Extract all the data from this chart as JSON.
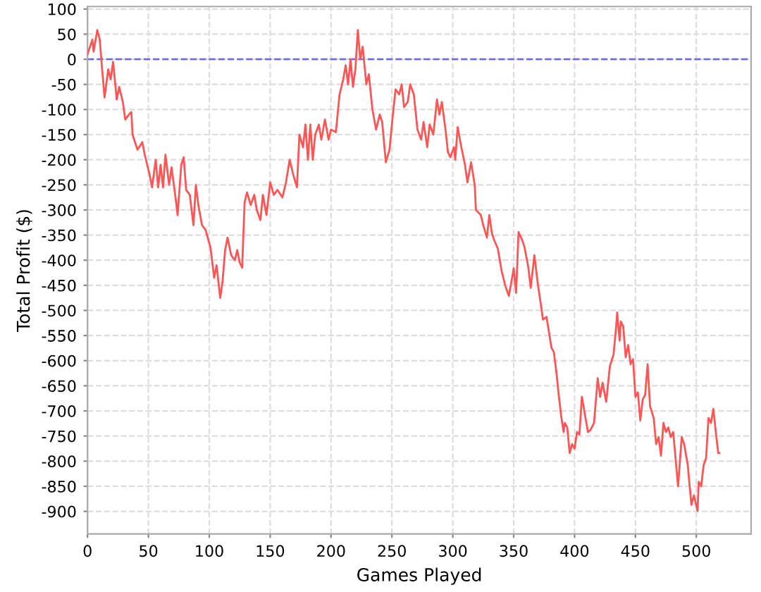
{
  "chart_data": {
    "type": "line",
    "xlabel": "Games Played",
    "ylabel": "Total Profit ($)",
    "xlim": [
      0,
      545
    ],
    "ylim": [
      -945,
      105
    ],
    "xticks": [
      0,
      50,
      100,
      150,
      200,
      250,
      300,
      350,
      400,
      450,
      500
    ],
    "yticks": [
      100,
      50,
      0,
      -50,
      -100,
      -150,
      -200,
      -250,
      -300,
      -350,
      -400,
      -450,
      -500,
      -550,
      -600,
      -650,
      -700,
      -750,
      -800,
      -850,
      -900
    ],
    "grid": true,
    "marker": "none",
    "line_style": "solid",
    "ref_lines": [
      {
        "axis": "y",
        "value": 0,
        "color": "#6666ff",
        "line_style": "dashed"
      }
    ],
    "series": [
      {
        "color": "#ff5555",
        "x": [
          0,
          4,
          5,
          8,
          10,
          12,
          14,
          17,
          19,
          21,
          24,
          26,
          29,
          31,
          34,
          36,
          37,
          41,
          45,
          47,
          51,
          53,
          56,
          58,
          60,
          62,
          64,
          67,
          69,
          72,
          74,
          77,
          79,
          81,
          84,
          87,
          89,
          91,
          94,
          97,
          101,
          104,
          106,
          109,
          111,
          113,
          115,
          118,
          121,
          123,
          125,
          127,
          129,
          131,
          134,
          137,
          139,
          142,
          144,
          147,
          150,
          153,
          156,
          160,
          163,
          166,
          169,
          172,
          174,
          177,
          179,
          181,
          183,
          185,
          187,
          190,
          192,
          195,
          198,
          200,
          204,
          207,
          210,
          212,
          214,
          216,
          218,
          220,
          222,
          224,
          226,
          229,
          231,
          234,
          237,
          240,
          242,
          245,
          248,
          251,
          253,
          256,
          258,
          260,
          263,
          265,
          268,
          271,
          274,
          276,
          279,
          281,
          284,
          287,
          289,
          291,
          294,
          296,
          298,
          301,
          302,
          304,
          307,
          310,
          312,
          315,
          318,
          319,
          323,
          325,
          328,
          330,
          332,
          334,
          337,
          340,
          343,
          346,
          348,
          350,
          352,
          354,
          357,
          359,
          362,
          364,
          367,
          370,
          373,
          374,
          377,
          381,
          383,
          385,
          387,
          389,
          391,
          392,
          394,
          396,
          398,
          400,
          402,
          404,
          406,
          409,
          411,
          413,
          416,
          419,
          421,
          423,
          426,
          429,
          432,
          434,
          435,
          437,
          438,
          440,
          442,
          444,
          446,
          448,
          450,
          452,
          454,
          456,
          458,
          460,
          462,
          465,
          467,
          469,
          471,
          473,
          475,
          477,
          479,
          481,
          485,
          488,
          490,
          493,
          494,
          496,
          498,
          499,
          501,
          502,
          504,
          506,
          508,
          510,
          512,
          514,
          516,
          518,
          519
        ],
        "values": [
          10,
          39,
          15,
          58,
          40,
          -20,
          -76,
          -20,
          -40,
          -5,
          -80,
          -55,
          -85,
          -120,
          -110,
          -105,
          -150,
          -180,
          -165,
          -190,
          -230,
          -255,
          -200,
          -255,
          -210,
          -255,
          -190,
          -250,
          -215,
          -270,
          -310,
          -210,
          -195,
          -260,
          -270,
          -330,
          -250,
          -290,
          -330,
          -340,
          -375,
          -435,
          -410,
          -475,
          -440,
          -380,
          -355,
          -390,
          -400,
          -380,
          -405,
          -415,
          -285,
          -265,
          -290,
          -270,
          -300,
          -320,
          -270,
          -310,
          -245,
          -270,
          -260,
          -275,
          -245,
          -200,
          -230,
          -255,
          -150,
          -175,
          -130,
          -200,
          -130,
          -200,
          -150,
          -130,
          -160,
          -120,
          -160,
          -140,
          -145,
          -70,
          -40,
          -12,
          -50,
          0,
          -55,
          -20,
          58,
          0,
          25,
          -50,
          -30,
          -100,
          -140,
          -110,
          -125,
          -205,
          -180,
          -105,
          -60,
          -70,
          -50,
          -95,
          -85,
          -50,
          -70,
          -140,
          -160,
          -125,
          -175,
          -130,
          -150,
          -80,
          -110,
          -85,
          -140,
          -185,
          -195,
          -175,
          -200,
          -135,
          -175,
          -210,
          -245,
          -205,
          -250,
          -300,
          -310,
          -330,
          -355,
          -310,
          -345,
          -360,
          -377,
          -420,
          -450,
          -471,
          -445,
          -416,
          -465,
          -344,
          -360,
          -375,
          -414,
          -455,
          -390,
          -450,
          -499,
          -518,
          -513,
          -574,
          -583,
          -621,
          -668,
          -710,
          -742,
          -724,
          -733,
          -784,
          -766,
          -775,
          -742,
          -747,
          -672,
          -714,
          -742,
          -738,
          -724,
          -635,
          -672,
          -644,
          -682,
          -611,
          -588,
          -537,
          -504,
          -560,
          -522,
          -532,
          -593,
          -569,
          -607,
          -597,
          -672,
          -663,
          -719,
          -677,
          -668,
          -607,
          -691,
          -714,
          -766,
          -752,
          -789,
          -724,
          -742,
          -733,
          -752,
          -742,
          -850,
          -752,
          -766,
          -808,
          -836,
          -887,
          -868,
          -878,
          -899,
          -841,
          -850,
          -808,
          -794,
          -714,
          -724,
          -696,
          -742,
          -784,
          -784
        ]
      }
    ]
  }
}
